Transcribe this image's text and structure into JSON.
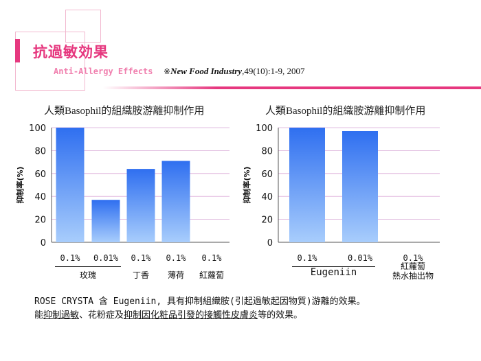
{
  "header": {
    "title": "抗過敏効果",
    "subtitle": "Anti-Allergy Effects",
    "citation_mark": "※",
    "citation_journal": "New Food Industry",
    "citation_ref": ",49(10):1-9, 2007"
  },
  "colors": {
    "accent": "#e6387f",
    "bar_top": "#2f6ff0",
    "bar_bottom": "#a8cdfc"
  },
  "chart_data": [
    {
      "type": "bar",
      "title": "人類Basophil的組織胺游離抑制作用",
      "ylabel": "抑制率(%)",
      "ylim": [
        0,
        100
      ],
      "yticks": [
        0,
        20,
        40,
        60,
        80,
        100
      ],
      "grid": true,
      "categories": [
        "0.1%",
        "0.01%",
        "0.1%",
        "0.1%",
        "0.1%"
      ],
      "values": [
        100,
        37,
        64,
        71,
        0
      ],
      "groups": [
        {
          "label": "玫瑰",
          "span": [
            0,
            1
          ]
        },
        {
          "label": "丁香",
          "span": [
            2,
            2
          ]
        },
        {
          "label": "薄荷",
          "span": [
            3,
            3
          ]
        },
        {
          "label": "紅蘿蔔",
          "span": [
            4,
            4
          ]
        }
      ]
    },
    {
      "type": "bar",
      "title": "人類Basophil的組織胺游離抑制作用",
      "ylabel": "抑制率(%)",
      "ylim": [
        0,
        100
      ],
      "yticks": [
        0,
        20,
        40,
        60,
        80,
        100
      ],
      "grid": true,
      "categories": [
        "0.1%",
        "0.01%",
        "0.1%"
      ],
      "values": [
        100,
        97,
        0
      ],
      "groups": [
        {
          "label": "Eugeniin",
          "span": [
            0,
            1
          ]
        },
        {
          "label": "紅蘿蔔\n熱水抽出物",
          "span": [
            2,
            2
          ]
        }
      ]
    }
  ],
  "description": {
    "line1": "ROSE CRYSTA 含 Eugeniin, 具有抑制組織胺(引起過敏起因物質)游離的效果。",
    "line2_a": "能",
    "line2_b": "抑制過敏",
    "line2_c": "、花粉症及",
    "line2_d": "抑制因化粧品引發的接觸性皮膚炎",
    "line2_e": "等的效果。"
  }
}
